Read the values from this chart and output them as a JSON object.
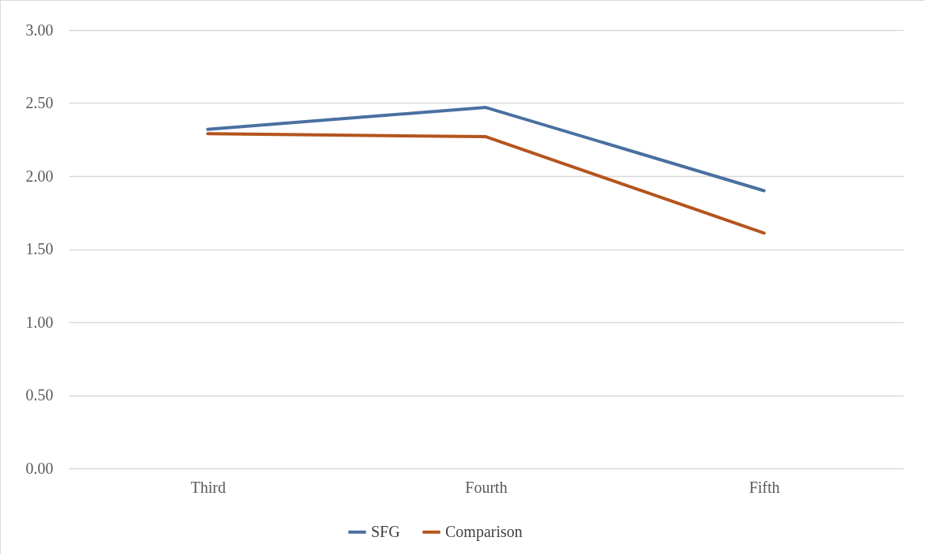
{
  "chart_data": {
    "type": "line",
    "categories": [
      "Third",
      "Fourth",
      "Fifth"
    ],
    "series": [
      {
        "name": "SFG",
        "color": "#4a70a0",
        "values": [
          2.32,
          2.47,
          1.9
        ]
      },
      {
        "name": "Comparison",
        "color": "#b4541e",
        "values": [
          2.29,
          2.27,
          1.61
        ]
      }
    ],
    "ylim": [
      0,
      3
    ],
    "yticks": [
      {
        "value": 0,
        "label": "0.00"
      },
      {
        "value": 0.5,
        "label": "0.50"
      },
      {
        "value": 1,
        "label": "1.00"
      },
      {
        "value": 1.5,
        "label": "1.50"
      },
      {
        "value": 2,
        "label": "2.00"
      },
      {
        "value": 2.5,
        "label": "2.50"
      },
      {
        "value": 3,
        "label": "3.00"
      }
    ],
    "grid": "y",
    "legend": "bottom",
    "marker": "none",
    "line_style": "solid"
  }
}
